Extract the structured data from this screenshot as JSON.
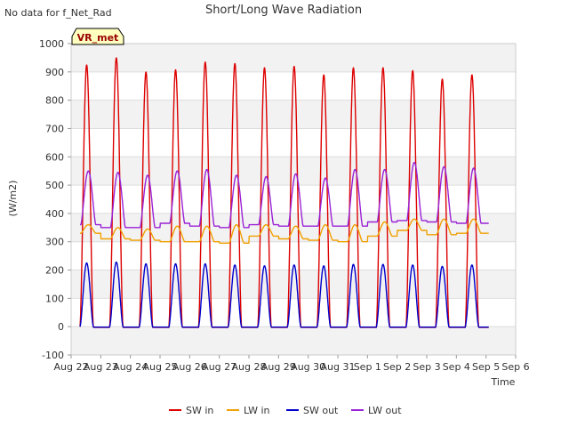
{
  "chart_data": {
    "type": "line",
    "title": "Short/Long Wave Radiation",
    "no_data_note": "No data for f_Net_Rad",
    "site_badge": "VR_met",
    "xlabel": "Time",
    "ylabel": "(W/m2)",
    "ylim": [
      -100,
      1000
    ],
    "xlim": [
      0,
      15
    ],
    "y_ticks": [
      -100,
      0,
      100,
      200,
      300,
      400,
      500,
      600,
      700,
      800,
      900,
      1000
    ],
    "x_tick_labels": [
      "Aug 22",
      "Aug 23",
      "Aug 24",
      "Aug 25",
      "Aug 26",
      "Aug 27",
      "Aug 28",
      "Aug 29",
      "Aug 30",
      "Aug 31",
      "Sep 1",
      "Sep 2",
      "Sep 3",
      "Sep 4",
      "Sep 5",
      "Sep 6"
    ],
    "data_range_days": [
      0.3,
      14.1
    ],
    "grid": true,
    "legend_position": "bottom",
    "series": [
      {
        "name": "SW in",
        "color": "#dd0000",
        "kind": "sw",
        "baseline": -3,
        "daily_peaks": [
          925,
          950,
          900,
          908,
          935,
          930,
          915,
          920,
          890,
          915,
          915,
          905,
          875,
          890
        ]
      },
      {
        "name": "LW in",
        "color": "#f0a000",
        "kind": "lw",
        "daily_night": [
          330,
          310,
          305,
          300,
          300,
          295,
          320,
          310,
          305,
          300,
          320,
          340,
          325,
          330
        ],
        "daily_day": [
          360,
          350,
          345,
          355,
          355,
          360,
          360,
          355,
          360,
          360,
          370,
          380,
          380,
          380
        ]
      },
      {
        "name": "SW out",
        "color": "#0000cc",
        "kind": "sw",
        "baseline": -2,
        "daily_peaks": [
          225,
          228,
          222,
          222,
          222,
          218,
          215,
          218,
          215,
          220,
          220,
          218,
          213,
          218
        ]
      },
      {
        "name": "LW out",
        "color": "#9a22d6",
        "kind": "lw",
        "daily_night": [
          360,
          350,
          350,
          365,
          355,
          350,
          360,
          355,
          355,
          355,
          370,
          375,
          370,
          365
        ],
        "daily_day": [
          550,
          545,
          535,
          550,
          555,
          535,
          530,
          540,
          525,
          555,
          555,
          580,
          565,
          560
        ]
      }
    ]
  }
}
